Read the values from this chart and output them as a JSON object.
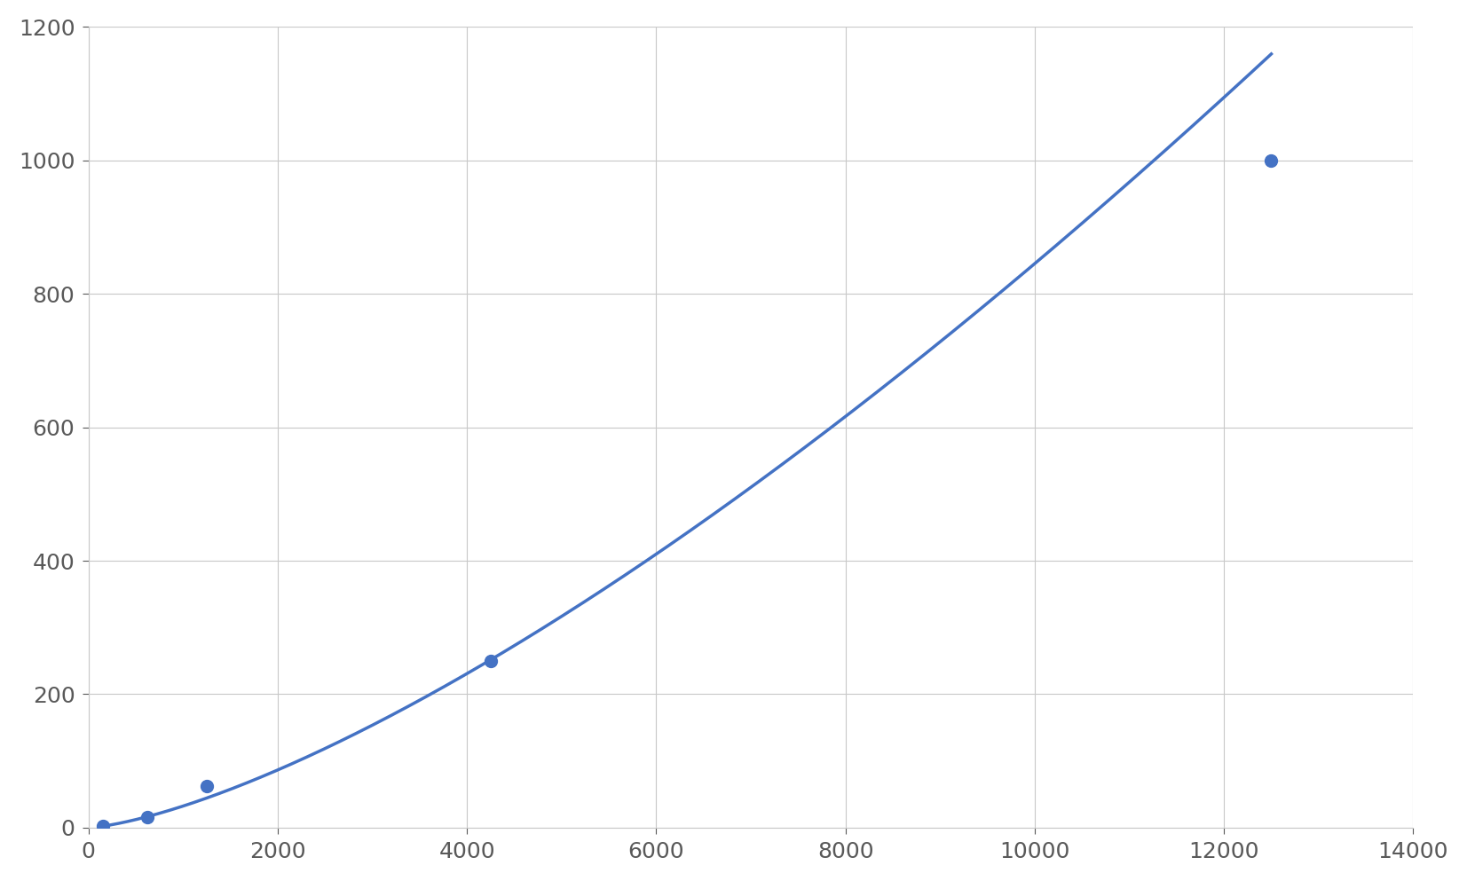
{
  "x_data": [
    156,
    625,
    1250,
    4250,
    12500
  ],
  "y_data": [
    2,
    16,
    63,
    250,
    1000
  ],
  "line_color": "#4472C4",
  "marker_color": "#4472C4",
  "marker_size": 10,
  "line_width": 2.5,
  "xlim": [
    0,
    14000
  ],
  "ylim": [
    0,
    1200
  ],
  "xticks": [
    0,
    2000,
    4000,
    6000,
    8000,
    10000,
    12000,
    14000
  ],
  "yticks": [
    0,
    200,
    400,
    600,
    800,
    1000,
    1200
  ],
  "grid_color": "#C8C8C8",
  "background_color": "#FFFFFF",
  "figure_background": "#FFFFFF",
  "tick_fontsize": 18,
  "tick_color": "#595959"
}
